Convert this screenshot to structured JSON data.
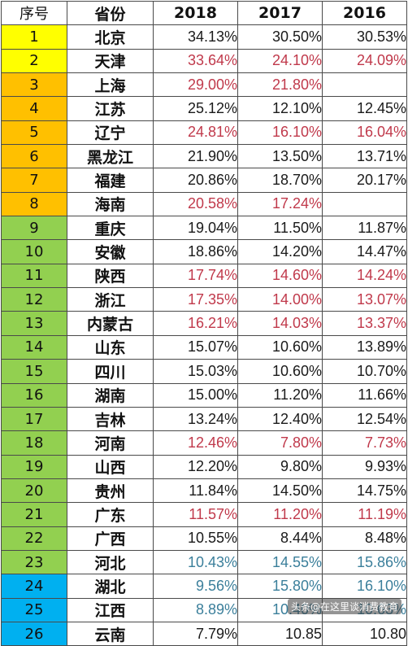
{
  "headers": {
    "idx": "序号",
    "prov": "省份",
    "y2018": "2018",
    "y2017": "2017",
    "y2016": "2016"
  },
  "colors": {
    "yellow": "#ffff00",
    "orange": "#ffc000",
    "green": "#92d050",
    "blue": "#00b0f0",
    "black": "#1a1a1a",
    "red": "#c0394b",
    "teal": "#3b7f9b"
  },
  "rows": [
    {
      "idx": "1",
      "province": "北京",
      "band": "yellow",
      "y2018": "34.13%",
      "y2017": "30.50%",
      "y2016": "30.53%",
      "c2018": "black",
      "c2017": "black",
      "c2016": "black"
    },
    {
      "idx": "2",
      "province": "天津",
      "band": "yellow",
      "y2018": "33.64%",
      "y2017": "24.10%",
      "y2016": "24.09%",
      "c2018": "red",
      "c2017": "red",
      "c2016": "red"
    },
    {
      "idx": "3",
      "province": "上海",
      "band": "orange",
      "y2018": "29.00%",
      "y2017": "21.80%",
      "y2016": "",
      "c2018": "red",
      "c2017": "red",
      "c2016": "black"
    },
    {
      "idx": "4",
      "province": "江苏",
      "band": "orange",
      "y2018": "25.12%",
      "y2017": "12.10%",
      "y2016": "12.45%",
      "c2018": "black",
      "c2017": "black",
      "c2016": "black"
    },
    {
      "idx": "5",
      "province": "辽宁",
      "band": "orange",
      "y2018": "24.81%",
      "y2017": "16.10%",
      "y2016": "16.04%",
      "c2018": "red",
      "c2017": "red",
      "c2016": "red"
    },
    {
      "idx": "6",
      "province": "黑龙江",
      "band": "orange",
      "y2018": "21.90%",
      "y2017": "13.50%",
      "y2016": "13.71%",
      "c2018": "black",
      "c2017": "black",
      "c2016": "black"
    },
    {
      "idx": "7",
      "province": "福建",
      "band": "orange",
      "y2018": "20.86%",
      "y2017": "18.70%",
      "y2016": "20.17%",
      "c2018": "black",
      "c2017": "black",
      "c2016": "black"
    },
    {
      "idx": "8",
      "province": "海南",
      "band": "orange",
      "y2018": "20.58%",
      "y2017": "17.24%",
      "y2016": "",
      "c2018": "red",
      "c2017": "red",
      "c2016": "black"
    },
    {
      "idx": "9",
      "province": "重庆",
      "band": "green",
      "y2018": "19.04%",
      "y2017": "11.50%",
      "y2016": "11.87%",
      "c2018": "black",
      "c2017": "black",
      "c2016": "black"
    },
    {
      "idx": "10",
      "province": "安徽",
      "band": "green",
      "y2018": "18.86%",
      "y2017": "14.20%",
      "y2016": "14.47%",
      "c2018": "black",
      "c2017": "black",
      "c2016": "black"
    },
    {
      "idx": "11",
      "province": "陕西",
      "band": "green",
      "y2018": "17.74%",
      "y2017": "14.60%",
      "y2016": "14.24%",
      "c2018": "red",
      "c2017": "red",
      "c2016": "red"
    },
    {
      "idx": "12",
      "province": "浙江",
      "band": "green",
      "y2018": "17.35%",
      "y2017": "14.00%",
      "y2016": "13.07%",
      "c2018": "red",
      "c2017": "red",
      "c2016": "red"
    },
    {
      "idx": "13",
      "province": "内蒙古",
      "band": "green",
      "y2018": "16.21%",
      "y2017": "14.03%",
      "y2016": "13.37%",
      "c2018": "red",
      "c2017": "red",
      "c2016": "red"
    },
    {
      "idx": "14",
      "province": "山东",
      "band": "green",
      "y2018": "15.07%",
      "y2017": "10.60%",
      "y2016": "13.89%",
      "c2018": "black",
      "c2017": "black",
      "c2016": "black"
    },
    {
      "idx": "15",
      "province": "四川",
      "band": "green",
      "y2018": "15.03%",
      "y2017": "10.60%",
      "y2016": "10.70%",
      "c2018": "black",
      "c2017": "black",
      "c2016": "black"
    },
    {
      "idx": "16",
      "province": "湖南",
      "band": "green",
      "y2018": "15.00%",
      "y2017": "11.20%",
      "y2016": "11.66%",
      "c2018": "black",
      "c2017": "black",
      "c2016": "black"
    },
    {
      "idx": "17",
      "province": "吉林",
      "band": "green",
      "y2018": "13.24%",
      "y2017": "12.40%",
      "y2016": "12.54%",
      "c2018": "black",
      "c2017": "black",
      "c2016": "black"
    },
    {
      "idx": "18",
      "province": "河南",
      "band": "green",
      "y2018": "12.46%",
      "y2017": "7.80%",
      "y2016": "7.73%",
      "c2018": "red",
      "c2017": "red",
      "c2016": "red"
    },
    {
      "idx": "19",
      "province": "山西",
      "band": "green",
      "y2018": "12.20%",
      "y2017": "9.80%",
      "y2016": "9.93%",
      "c2018": "black",
      "c2017": "black",
      "c2016": "black"
    },
    {
      "idx": "20",
      "province": "贵州",
      "band": "green",
      "y2018": "11.84%",
      "y2017": "14.50%",
      "y2016": "14.75%",
      "c2018": "black",
      "c2017": "black",
      "c2016": "black"
    },
    {
      "idx": "21",
      "province": "广东",
      "band": "green",
      "y2018": "11.57%",
      "y2017": "11.20%",
      "y2016": "11.19%",
      "c2018": "red",
      "c2017": "red",
      "c2016": "red"
    },
    {
      "idx": "22",
      "province": "广西",
      "band": "green",
      "y2018": "10.55%",
      "y2017": "8.44%",
      "y2016": "8.48%",
      "c2018": "black",
      "c2017": "black",
      "c2016": "black"
    },
    {
      "idx": "23",
      "province": "河北",
      "band": "green",
      "y2018": "10.43%",
      "y2017": "14.55%",
      "y2016": "15.86%",
      "c2018": "teal",
      "c2017": "teal",
      "c2016": "teal"
    },
    {
      "idx": "24",
      "province": "湖北",
      "band": "blue",
      "y2018": "9.56%",
      "y2017": "15.80%",
      "y2016": "16.10%",
      "c2018": "teal",
      "c2017": "teal",
      "c2016": "teal"
    },
    {
      "idx": "25",
      "province": "江西",
      "band": "blue",
      "y2018": "8.89%",
      "y2017": "10.40%",
      "y2016": "10.63%",
      "c2018": "teal",
      "c2017": "teal",
      "c2016": "teal"
    },
    {
      "idx": "26",
      "province": "云南",
      "band": "blue",
      "y2018": "7.79%",
      "y2017": "10.85",
      "y2016": "10.80",
      "c2018": "black",
      "c2017": "black",
      "c2016": "black"
    }
  ],
  "watermark": "头条@在这里谈消费教育"
}
